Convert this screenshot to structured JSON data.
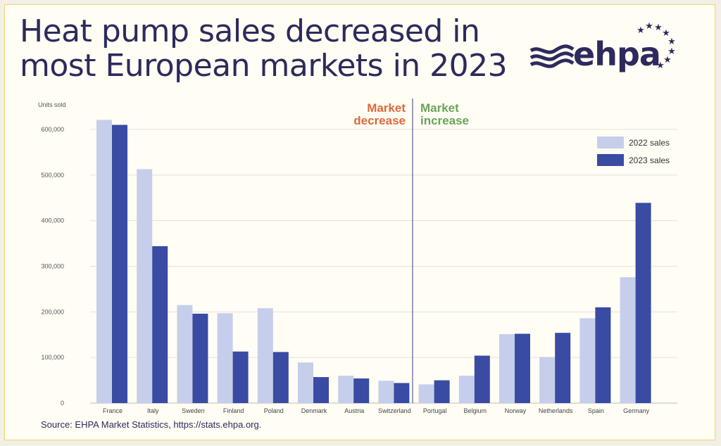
{
  "title": "Heat pump sales decreased in most European markets in 2023",
  "logo": {
    "text": "ehpa",
    "icon": "ehpa-logo-waves-stars"
  },
  "source": "Source: EHPA Market Statistics, https://stats.ehpa.org.",
  "colors": {
    "series_2022": "#c5cfec",
    "series_2023": "#3a4ba3",
    "title": "#2d2a5c",
    "decrease": "#e0693a",
    "increase": "#6aa35a",
    "divider": "#3c3f80"
  },
  "chart_data": {
    "type": "bar",
    "ylabel": "Units sold",
    "ylim": [
      0,
      600000
    ],
    "yticks": [
      "0",
      "100,000",
      "200,000",
      "300,000",
      "400,000",
      "500,000",
      "600,000"
    ],
    "categories": [
      "France",
      "Italy",
      "Sweden",
      "Finland",
      "Poland",
      "Denmark",
      "Austria",
      "Switzerland",
      "Portugal",
      "Belgium",
      "Norway",
      "Netherlands",
      "Spain",
      "Germany"
    ],
    "series": [
      {
        "name": "2022 sales",
        "values": [
          621000,
          513000,
          215000,
          197000,
          208000,
          89000,
          60000,
          49000,
          41000,
          60000,
          151000,
          101000,
          186000,
          276000
        ]
      },
      {
        "name": "2023 sales",
        "values": [
          610000,
          344000,
          196000,
          113000,
          112000,
          57000,
          54000,
          44000,
          50000,
          104000,
          152000,
          154000,
          210000,
          439000
        ]
      }
    ],
    "annotations": {
      "left": [
        "Market",
        "decrease"
      ],
      "right": [
        "Market",
        "increase"
      ]
    },
    "grid": true,
    "legend": "top-right"
  }
}
